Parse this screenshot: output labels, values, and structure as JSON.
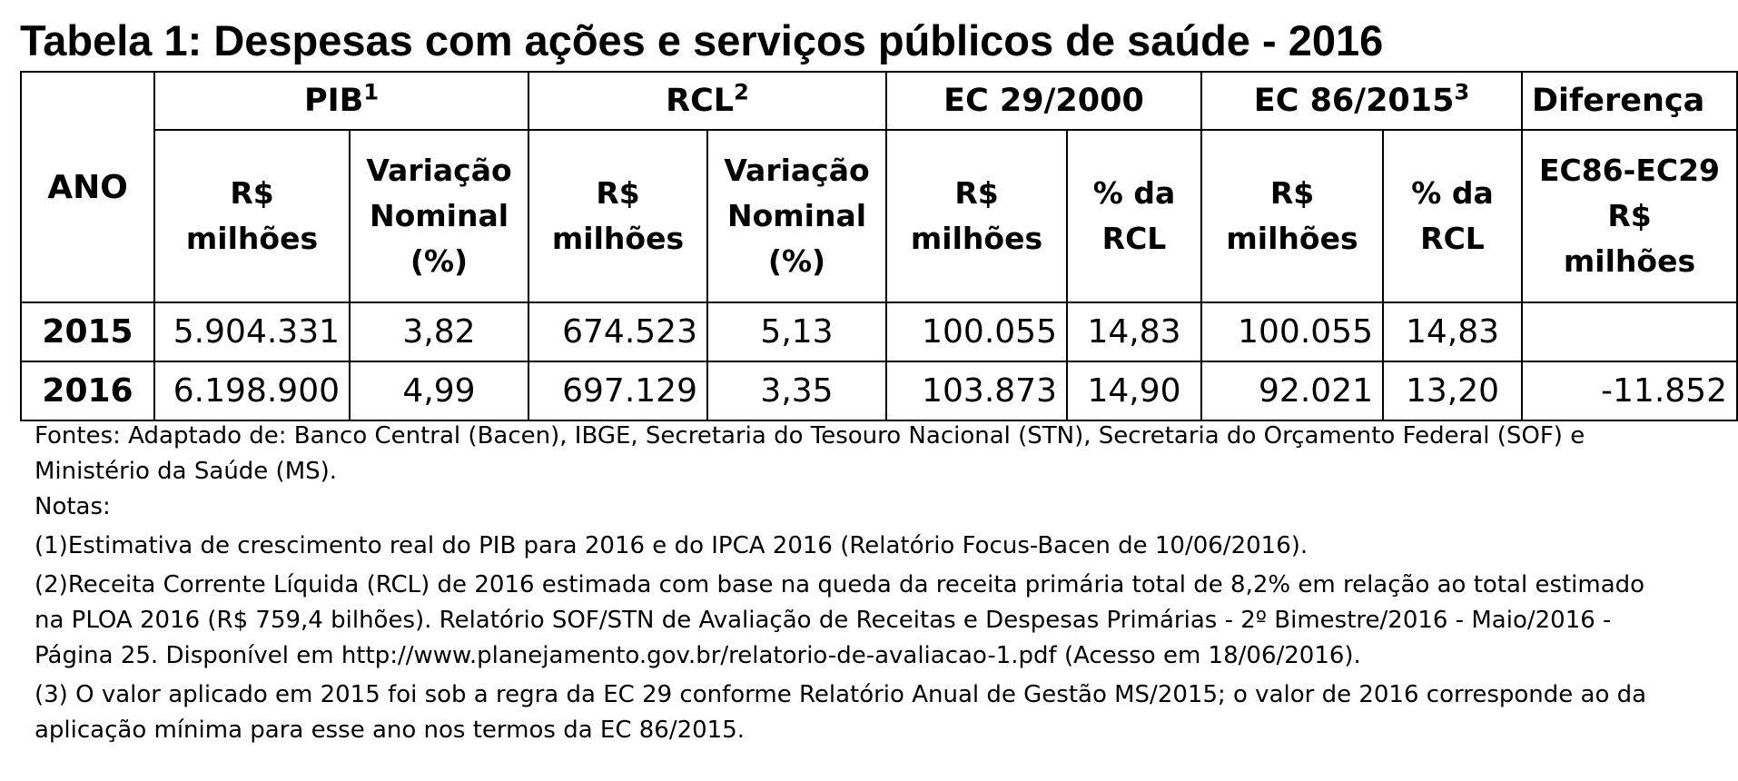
{
  "title": "Tabela 1: Despesas com ações e serviços públicos de saúde - 2016",
  "table": {
    "groups": {
      "pib": "PIB",
      "pib_sup": "1",
      "rcl": "RCL",
      "rcl_sup": "2",
      "ec29": "EC 29/2000",
      "ec86": "EC 86/2015",
      "ec86_sup": "3",
      "diff": "Diferença"
    },
    "ano_label": "ANO",
    "sub": {
      "rs_1": "R$",
      "milhoes": "milhões",
      "variacao": "Variação",
      "nominal": "Nominal",
      "pct": "(%)",
      "pct_da": "% da",
      "rcl": "RCL",
      "diff_1": "EC86-EC29"
    },
    "rows": [
      {
        "ano": "2015",
        "pib_rs": "5.904.331",
        "pib_var": "3,82",
        "rcl_rs": "674.523",
        "rcl_var": "5,13",
        "ec29_rs": "100.055",
        "ec29_pct": "14,83",
        "ec86_rs": "100.055",
        "ec86_pct": "14,83",
        "diff": ""
      },
      {
        "ano": "2016",
        "pib_rs": "6.198.900",
        "pib_var": "4,99",
        "rcl_rs": "697.129",
        "rcl_var": "3,35",
        "ec29_rs": "103.873",
        "ec29_pct": "14,90",
        "ec86_rs": "92.021",
        "ec86_pct": "13,20",
        "diff": "-11.852"
      }
    ]
  },
  "notes": {
    "fontes_1": "Fontes: Adaptado de: Banco Central (Bacen), IBGE, Secretaria do Tesouro Nacional (STN), Secretaria do Orçamento Federal (SOF) e",
    "fontes_2": "Ministério da Saúde (MS).",
    "notas": "Notas:",
    "n1": "(1)Estimativa de crescimento real do PIB para 2016 e do IPCA 2016 (Relatório Focus-Bacen de 10/06/2016).",
    "n2_1": "(2)Receita Corrente Líquida (RCL) de 2016 estimada com base na queda da receita primária total de 8,2% em relação ao total estimado",
    "n2_2": "na PLOA 2016 (R$ 759,4 bilhões). Relatório SOF/STN de Avaliação de Receitas e Despesas Primárias - 2º Bimestre/2016 - Maio/2016 -",
    "n2_3": "Página 25. Disponível em http://www.planejamento.gov.br/relatorio-de-avaliacao-1.pdf (Acesso em 18/06/2016).",
    "n3_1": "(3) O valor aplicado em 2015 foi sob a regra da EC 29 conforme Relatório Anual de Gestão MS/2015; o valor de 2016 corresponde ao da",
    "n3_2": "aplicação mínima para esse ano nos termos da EC 86/2015."
  }
}
